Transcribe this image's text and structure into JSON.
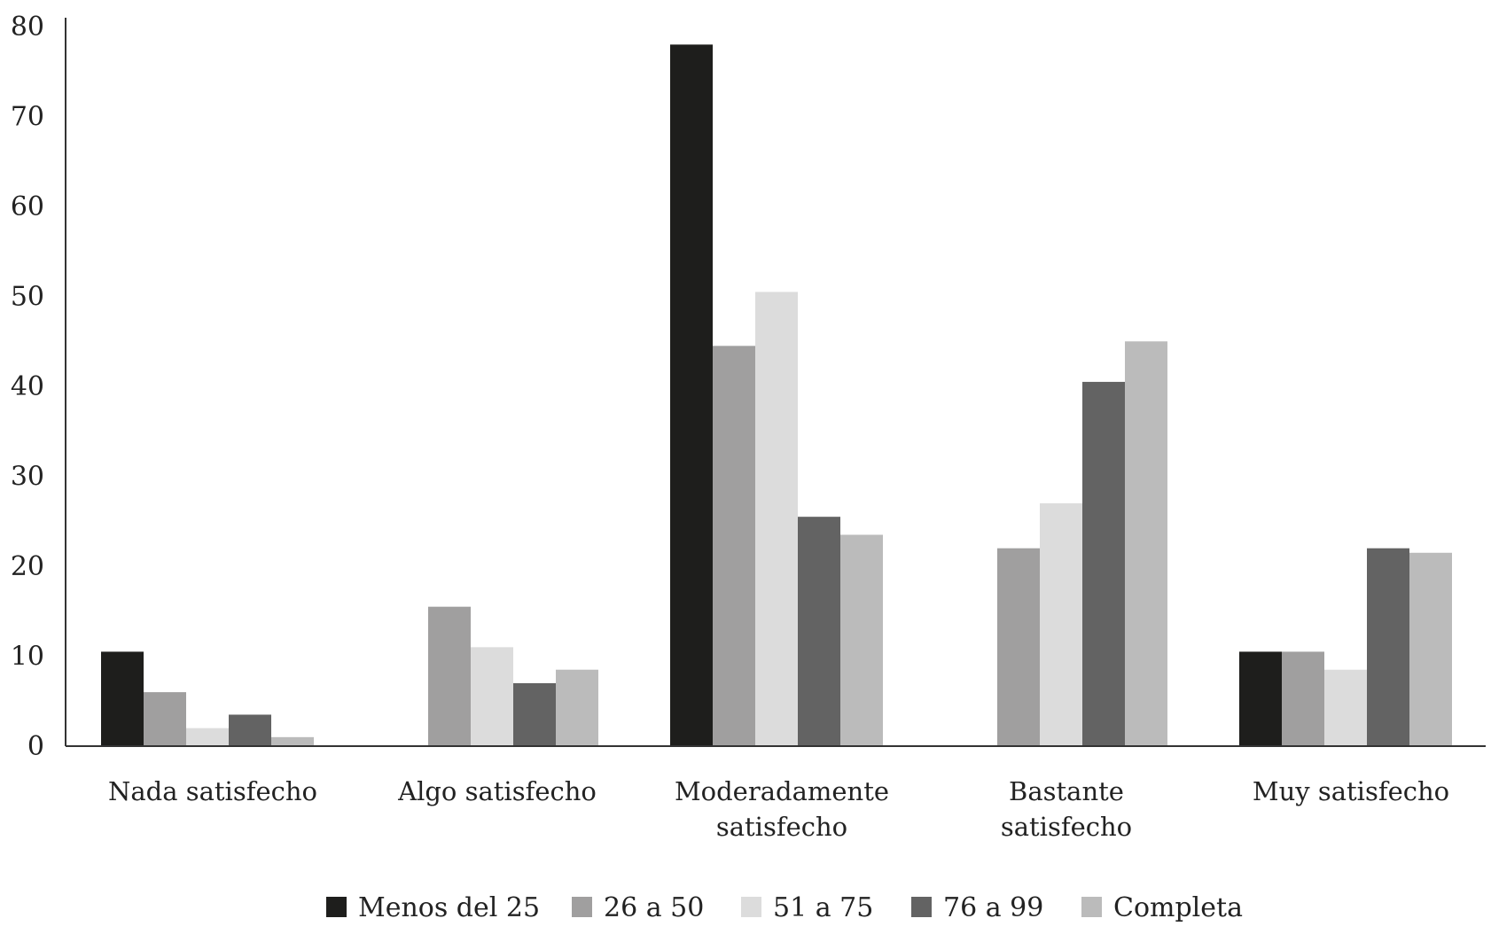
{
  "chart_data": {
    "type": "bar",
    "title": "",
    "xlabel": "",
    "ylabel": "",
    "ylim": [
      0,
      80
    ],
    "yticks": [
      0,
      10,
      20,
      30,
      40,
      50,
      60,
      70,
      80
    ],
    "grid": false,
    "legend_position": "bottom",
    "categories": [
      [
        "Nada satisfecho"
      ],
      [
        "Algo satisfecho"
      ],
      [
        "Moderadamente",
        "satisfecho"
      ],
      [
        "Bastante",
        "satisfecho"
      ],
      [
        "Muy satisfecho"
      ]
    ],
    "series": [
      {
        "name": "Menos del 25",
        "color": "#1e1e1c",
        "values": [
          10.5,
          0,
          78,
          0,
          10.5
        ]
      },
      {
        "name": "26 a 50",
        "color": "#a09f9f",
        "values": [
          6,
          15.5,
          44.5,
          22,
          10.5
        ]
      },
      {
        "name": "51 a 75",
        "color": "#dcdcdc",
        "values": [
          2,
          11,
          50.5,
          27,
          8.5
        ]
      },
      {
        "name": "76 a 99",
        "color": "#636363",
        "values": [
          3.5,
          7,
          25.5,
          40.5,
          22
        ]
      },
      {
        "name": "Completa",
        "color": "#bbbbbb",
        "values": [
          1,
          8.5,
          23.5,
          45,
          21.5
        ]
      }
    ]
  }
}
